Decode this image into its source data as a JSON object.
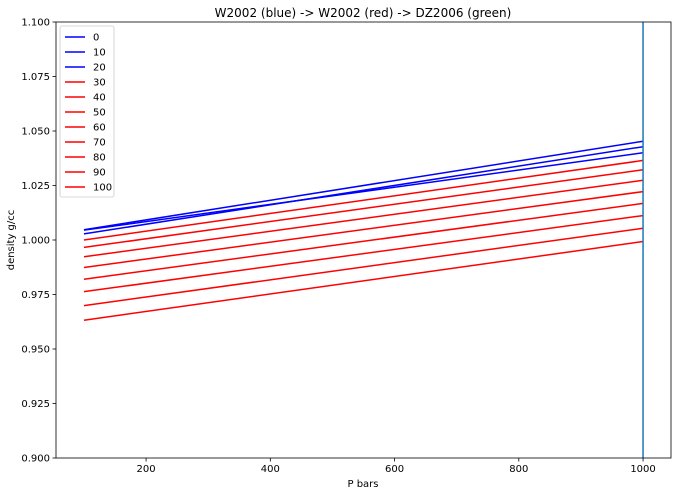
{
  "chart_data": {
    "type": "line",
    "title": "W2002 (blue) -> W2002 (red) -> DZ2006 (green)",
    "xlabel": "P bars",
    "ylabel": "density g/cc",
    "xlim": [
      55,
      1045
    ],
    "ylim": [
      0.9,
      1.1
    ],
    "x_ticks": [
      200,
      400,
      600,
      800,
      1000
    ],
    "x_tick_labels": [
      "200",
      "400",
      "600",
      "800",
      "1000"
    ],
    "y_ticks": [
      0.9,
      0.925,
      0.95,
      0.975,
      1.0,
      1.025,
      1.05,
      1.075,
      1.1
    ],
    "y_tick_labels": [
      "0.900",
      "0.925",
      "0.950",
      "0.975",
      "1.000",
      "1.025",
      "1.050",
      "1.075",
      "1.100"
    ],
    "grid": false,
    "legend_position": "top-left",
    "x": [
      100,
      1000
    ],
    "series": [
      {
        "name": "0",
        "color": "#0000ff",
        "values": [
          1.0045,
          1.04
        ]
      },
      {
        "name": "10",
        "color": "#0000ff",
        "values": [
          1.0047,
          1.0453
        ]
      },
      {
        "name": "20",
        "color": "#0000ff",
        "values": [
          1.0028,
          1.0428
        ]
      },
      {
        "name": "30",
        "color": "#ff0000",
        "values": [
          1.0,
          1.0365
        ]
      },
      {
        "name": "40",
        "color": "#ff0000",
        "values": [
          0.9966,
          1.0322
        ]
      },
      {
        "name": "50",
        "color": "#ff0000",
        "values": [
          0.9923,
          1.0274
        ]
      },
      {
        "name": "60",
        "color": "#ff0000",
        "values": [
          0.9874,
          1.0222
        ]
      },
      {
        "name": "70",
        "color": "#ff0000",
        "values": [
          0.982,
          1.0168
        ]
      },
      {
        "name": "80",
        "color": "#ff0000",
        "values": [
          0.9763,
          1.0112
        ]
      },
      {
        "name": "90",
        "color": "#ff0000",
        "values": [
          0.9699,
          1.0054
        ]
      },
      {
        "name": "100",
        "color": "#ff0000",
        "values": [
          0.9632,
          0.9993
        ]
      }
    ],
    "vline": {
      "x": 1000,
      "color": "#1f77b4"
    }
  }
}
